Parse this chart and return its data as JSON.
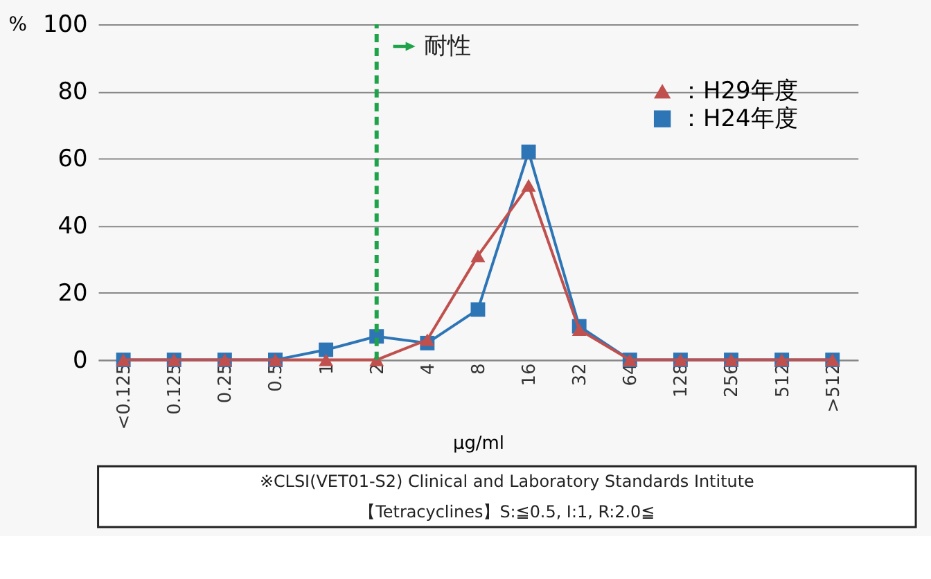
{
  "chart_data": {
    "type": "line",
    "ylabel": "%",
    "xlabel": "μg/ml",
    "categories": [
      "<0.125",
      "0.125",
      "0.25",
      "0.5",
      "1",
      "2",
      "4",
      "8",
      "16",
      "32",
      "64",
      "128",
      "256",
      "512",
      ">512"
    ],
    "series": [
      {
        "name": "：H29年度",
        "color": "#c0504d",
        "marker": "triangle",
        "values": [
          0,
          0,
          0,
          0,
          0,
          0,
          6,
          31,
          52,
          9,
          0,
          0,
          0,
          0,
          0
        ]
      },
      {
        "name": "：H24年度",
        "color": "#2e75b6",
        "marker": "square",
        "values": [
          0,
          0,
          0,
          0,
          3,
          7,
          5,
          15,
          62,
          10,
          0,
          0,
          0,
          0,
          0
        ]
      }
    ],
    "ylim": [
      0,
      100
    ],
    "yticks": [
      0,
      20,
      40,
      60,
      80,
      100
    ],
    "grid": "y",
    "legend": "top right",
    "ref_lines": [
      {
        "axis": "x",
        "value": "2",
        "label": "耐性",
        "color": "#1fa34a",
        "line_style": "dashed"
      }
    ],
    "annotations": [
      "※CLSI(VET01-S2) Clinical and Laboratory Standards Intitute",
      "【Tetracyclines】S:≦0.5, I:1, R:2.0≦"
    ]
  }
}
